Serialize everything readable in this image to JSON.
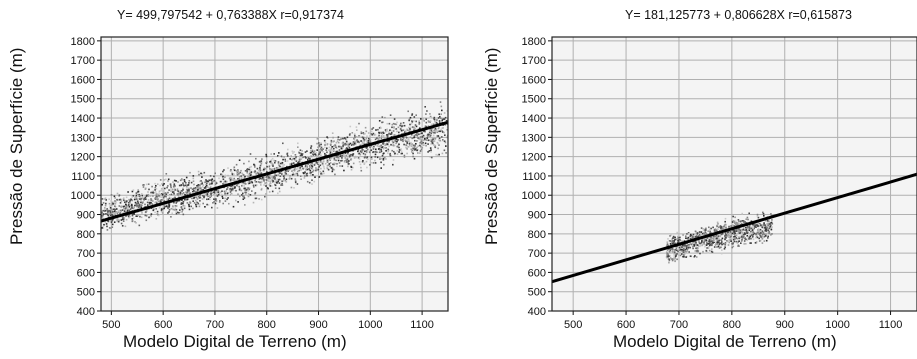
{
  "chart_data": [
    {
      "type": "scatter",
      "title": "Y= 499,797542 + 0,763388X  r=0,917374",
      "xlabel": "Modelo Digital de Terreno (m)",
      "ylabel": "Pressão de Superfície (m)",
      "xlim": [
        480,
        1150
      ],
      "ylim": [
        400,
        1820
      ],
      "xticks": [
        500,
        600,
        700,
        800,
        900,
        1000,
        1100
      ],
      "yticks": [
        400,
        500,
        600,
        700,
        800,
        900,
        1000,
        1100,
        1200,
        1300,
        1400,
        1500,
        1600,
        1700,
        1800
      ],
      "grid": true,
      "regression": {
        "intercept": 499.797542,
        "slope": 0.763388,
        "r": 0.917374
      },
      "cloud": [
        [
          480,
          900
        ],
        [
          520,
          930
        ],
        [
          560,
          960
        ],
        [
          600,
          985
        ],
        [
          650,
          1010
        ],
        [
          700,
          1030
        ],
        [
          750,
          1070
        ],
        [
          800,
          1110
        ],
        [
          850,
          1150
        ],
        [
          900,
          1190
        ],
        [
          950,
          1230
        ],
        [
          1000,
          1260
        ],
        [
          1050,
          1290
        ],
        [
          1100,
          1320
        ],
        [
          1150,
          1350
        ]
      ],
      "spread": [
        110,
        120,
        130,
        140,
        140,
        130,
        140,
        150,
        140,
        140,
        140,
        150,
        160,
        170,
        170
      ]
    },
    {
      "type": "scatter",
      "title": "Y= 181,125773 + 0,806628X  r=0,615873",
      "xlabel": "Modelo Digital de Terreno (m)",
      "ylabel": "Pressão de Superfície (m)",
      "xlim": [
        460,
        1150
      ],
      "ylim": [
        400,
        1820
      ],
      "xticks": [
        500,
        600,
        700,
        800,
        900,
        1000,
        1100
      ],
      "yticks": [
        400,
        500,
        600,
        700,
        800,
        900,
        1000,
        1100,
        1200,
        1300,
        1400,
        1500,
        1600,
        1700,
        1800
      ],
      "grid": true,
      "regression": {
        "intercept": 181.125773,
        "slope": 0.806628,
        "r": 0.615873
      },
      "cloud": [
        [
          675,
          720
        ],
        [
          700,
          740
        ],
        [
          725,
          760
        ],
        [
          750,
          780
        ],
        [
          775,
          795
        ],
        [
          800,
          810
        ],
        [
          825,
          820
        ],
        [
          850,
          830
        ],
        [
          875,
          840
        ]
      ],
      "spread": [
        90,
        100,
        100,
        100,
        100,
        100,
        100,
        100,
        100
      ]
    }
  ]
}
